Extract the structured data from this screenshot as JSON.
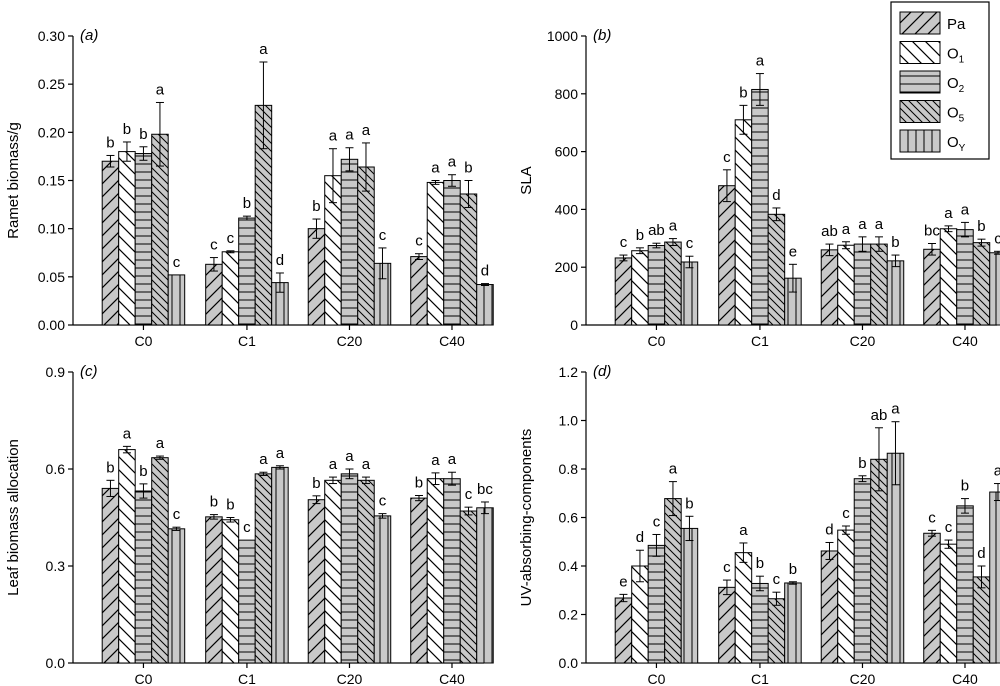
{
  "figure": {
    "categories": [
      "C0",
      "C1",
      "C20",
      "C40"
    ],
    "legend": [
      {
        "label": "Pa",
        "sub": "",
        "pattern": "diag-right",
        "color": "#c8c8c8"
      },
      {
        "label": "O",
        "sub": "1",
        "pattern": "diag-left-white",
        "color": "#ffffff"
      },
      {
        "label": "O",
        "sub": "2",
        "pattern": "horizontal",
        "color": "#c8c8c8"
      },
      {
        "label": "O",
        "sub": "5",
        "pattern": "diag-left-dense",
        "color": "#c8c8c8"
      },
      {
        "label": "O",
        "sub": "Y",
        "pattern": "vertical",
        "color": "#c8c8c8"
      }
    ],
    "colors": {
      "bar_fill": "#c8c8c8",
      "bar_fill_alt": "#ffffff",
      "stroke": "#000000"
    }
  },
  "chart_data": [
    {
      "panel": "(a)",
      "type": "bar",
      "ylabel": "Ramet biomass/g",
      "categories": [
        "C0",
        "C1",
        "C20",
        "C40"
      ],
      "ylim": [
        0,
        0.3
      ],
      "yticks": [
        "0.00",
        "0.05",
        "0.10",
        "0.15",
        "0.20",
        "0.25",
        "0.30"
      ],
      "series": [
        {
          "name": "Pa",
          "values": [
            0.17,
            0.063,
            0.1,
            0.071
          ],
          "errors": [
            0.006,
            0.007,
            0.01,
            0.003
          ],
          "letters": [
            "b",
            "c",
            "b",
            "c"
          ]
        },
        {
          "name": "O1",
          "values": [
            0.18,
            0.076,
            0.155,
            0.148
          ],
          "errors": [
            0.01,
            0.001,
            0.028,
            0.002
          ],
          "letters": [
            "b",
            "c",
            "a",
            "a"
          ]
        },
        {
          "name": "O2",
          "values": [
            0.178,
            0.111,
            0.172,
            0.15
          ],
          "errors": [
            0.007,
            0.002,
            0.012,
            0.006
          ],
          "letters": [
            "b",
            "b",
            "a",
            "a"
          ]
        },
        {
          "name": "O5",
          "values": [
            0.198,
            0.228,
            0.164,
            0.136
          ],
          "errors": [
            0.033,
            0.045,
            0.025,
            0.014
          ],
          "letters": [
            "a",
            "a",
            "a",
            "b"
          ]
        },
        {
          "name": "OY",
          "values": [
            0.052,
            0.044,
            0.064,
            0.042
          ],
          "errors": [
            0.0,
            0.01,
            0.016,
            0.001
          ],
          "letters": [
            "c",
            "d",
            "c",
            "d"
          ]
        }
      ]
    },
    {
      "panel": "(b)",
      "type": "bar",
      "ylabel": "SLA",
      "categories": [
        "C0",
        "C1",
        "C20",
        "C40"
      ],
      "ylim": [
        0,
        1000
      ],
      "yticks": [
        "0",
        "200",
        "400",
        "600",
        "800",
        "1000"
      ],
      "series": [
        {
          "name": "Pa",
          "values": [
            232,
            482,
            260,
            262
          ],
          "errors": [
            10,
            55,
            20,
            20
          ],
          "letters": [
            "c",
            "c",
            "ab",
            "bc"
          ]
        },
        {
          "name": "O1",
          "values": [
            257,
            710,
            276,
            333
          ],
          "errors": [
            10,
            50,
            12,
            10
          ],
          "letters": [
            "b",
            "b",
            "a",
            "a"
          ]
        },
        {
          "name": "O2",
          "values": [
            275,
            815,
            280,
            330
          ],
          "errors": [
            8,
            55,
            25,
            25
          ],
          "letters": [
            "ab",
            "a",
            "a",
            "a"
          ]
        },
        {
          "name": "O5",
          "values": [
            287,
            383,
            280,
            285
          ],
          "errors": [
            12,
            22,
            25,
            12
          ],
          "letters": [
            "a",
            "d",
            "a",
            "b"
          ]
        },
        {
          "name": "OY",
          "values": [
            218,
            162,
            222,
            250
          ],
          "errors": [
            20,
            48,
            20,
            5
          ],
          "letters": [
            "c",
            "e",
            "b",
            "c"
          ]
        }
      ]
    },
    {
      "panel": "(c)",
      "type": "bar",
      "ylabel": "Leaf biomass allocation",
      "categories": [
        "C0",
        "C1",
        "C20",
        "C40"
      ],
      "ylim": [
        0,
        0.9
      ],
      "yticks": [
        "0.0",
        "0.3",
        "0.6",
        "0.9"
      ],
      "series": [
        {
          "name": "Pa",
          "values": [
            0.54,
            0.452,
            0.505,
            0.51
          ],
          "errors": [
            0.025,
            0.007,
            0.012,
            0.008
          ],
          "letters": [
            "b",
            "b",
            "b",
            "b"
          ]
        },
        {
          "name": "O1",
          "values": [
            0.66,
            0.443,
            0.565,
            0.57
          ],
          "errors": [
            0.01,
            0.007,
            0.01,
            0.018
          ],
          "letters": [
            "a",
            "b",
            "a",
            "a"
          ]
        },
        {
          "name": "O2",
          "values": [
            0.532,
            0.38,
            0.585,
            0.57
          ],
          "errors": [
            0.022,
            0.0,
            0.015,
            0.02
          ],
          "letters": [
            "b",
            "c",
            "a",
            "a"
          ]
        },
        {
          "name": "O5",
          "values": [
            0.635,
            0.585,
            0.565,
            0.47
          ],
          "errors": [
            0.005,
            0.005,
            0.01,
            0.012
          ],
          "letters": [
            "a",
            "a",
            "a",
            "c"
          ]
        },
        {
          "name": "OY",
          "values": [
            0.415,
            0.605,
            0.455,
            0.48
          ],
          "errors": [
            0.005,
            0.005,
            0.007,
            0.018
          ],
          "letters": [
            "c",
            "a",
            "c",
            "bc"
          ]
        }
      ]
    },
    {
      "panel": "(d)",
      "type": "bar",
      "ylabel": "UV-absorbing-components",
      "categories": [
        "C0",
        "C1",
        "C20",
        "C40"
      ],
      "ylim": [
        0,
        1.2
      ],
      "yticks": [
        "0.0",
        "0.2",
        "0.4",
        "0.6",
        "0.8",
        "1.0",
        "1.2"
      ],
      "series": [
        {
          "name": "Pa",
          "values": [
            0.268,
            0.312,
            0.462,
            0.535
          ],
          "errors": [
            0.015,
            0.03,
            0.035,
            0.012
          ],
          "letters": [
            "e",
            "c",
            "d",
            "c"
          ]
        },
        {
          "name": "O1",
          "values": [
            0.4,
            0.455,
            0.548,
            0.49
          ],
          "errors": [
            0.065,
            0.04,
            0.017,
            0.017
          ],
          "letters": [
            "d",
            "a",
            "c",
            "c"
          ]
        },
        {
          "name": "O2",
          "values": [
            0.485,
            0.328,
            0.76,
            0.648
          ],
          "errors": [
            0.045,
            0.03,
            0.012,
            0.03
          ],
          "letters": [
            "c",
            "b",
            "b",
            "b"
          ]
        },
        {
          "name": "O5",
          "values": [
            0.678,
            0.265,
            0.84,
            0.355
          ],
          "errors": [
            0.07,
            0.027,
            0.13,
            0.045
          ],
          "letters": [
            "a",
            "c",
            "ab",
            "d"
          ]
        },
        {
          "name": "OY",
          "values": [
            0.555,
            0.33,
            0.865,
            0.705
          ],
          "errors": [
            0.05,
            0.005,
            0.13,
            0.035
          ],
          "letters": [
            "b",
            "b",
            "a",
            "a"
          ]
        }
      ]
    }
  ]
}
